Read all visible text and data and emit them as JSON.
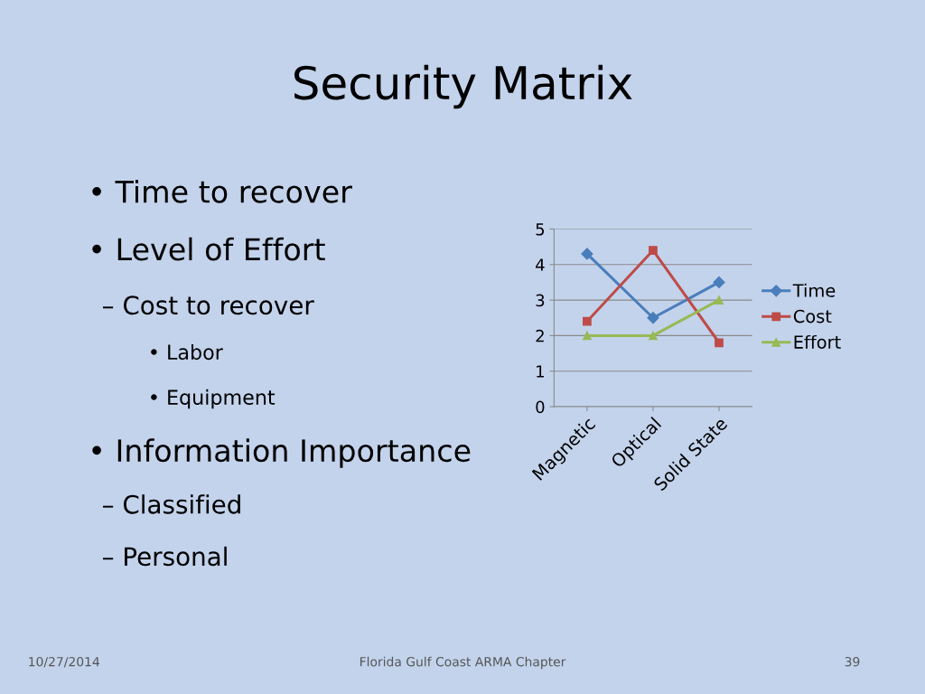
{
  "chart_data": {
    "type": "line",
    "title": "Security Matrix",
    "categories": [
      "Magnetic",
      "Optical",
      "Solid State"
    ],
    "series": [
      {
        "name": "Time",
        "color": "#4a7ebb",
        "marker": "diamond",
        "values": [
          4.3,
          2.5,
          3.5
        ]
      },
      {
        "name": "Cost",
        "color": "#be4b48",
        "marker": "square",
        "values": [
          2.4,
          4.4,
          1.8
        ]
      },
      {
        "name": "Effort",
        "color": "#98b954",
        "marker": "triangle",
        "values": [
          2,
          2,
          3
        ]
      }
    ],
    "ylim": [
      0,
      5
    ],
    "yticks": [
      0,
      1,
      2,
      3,
      4,
      5
    ],
    "grid": "y",
    "legend": "right",
    "line_style": "solid",
    "annotations": [
      "• Time to recover",
      "• Level of Effort",
      "– Cost to recover",
      "• Labor",
      "• Equipment",
      "• Information Importance",
      "– Classified",
      "– Personal",
      "10/27/2014",
      "Florida Gulf Coast ARMA Chapter",
      "39"
    ]
  }
}
